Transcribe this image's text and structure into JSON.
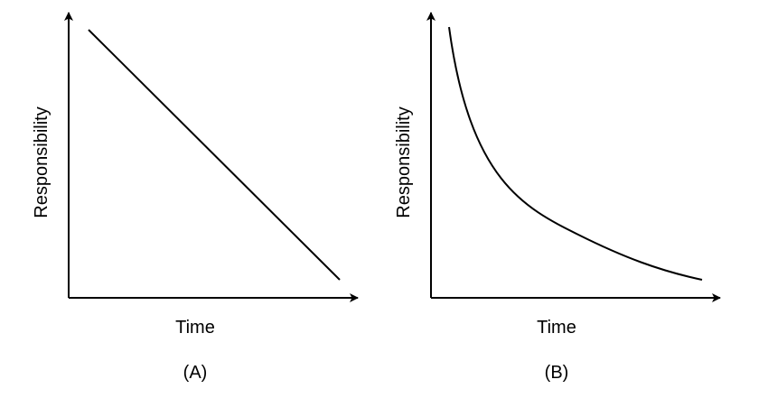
{
  "panels": [
    {
      "caption": "(A)",
      "xlabel": "Time",
      "ylabel": "Responsibility",
      "curve": "linear-decrease"
    },
    {
      "caption": "(B)",
      "xlabel": "Time",
      "ylabel": "Responsibility",
      "curve": "hyperbolic-decay"
    }
  ],
  "colors": {
    "line": "#000000",
    "background": "#ffffff"
  }
}
